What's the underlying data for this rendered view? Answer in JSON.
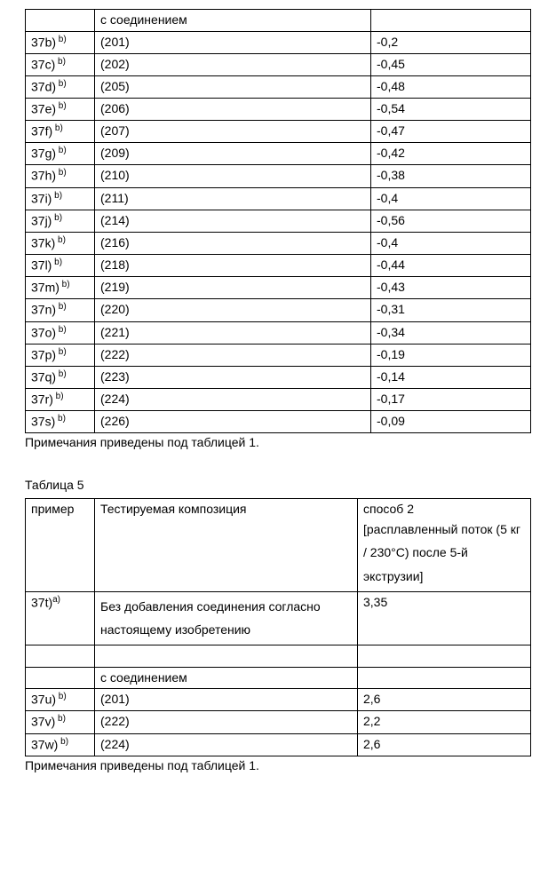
{
  "table1": {
    "header_middle": "с соединением",
    "rows": [
      {
        "id_base": "37b)",
        "id_sup": "b)",
        "mid": "(201)",
        "val": "-0,2"
      },
      {
        "id_base": "37c)",
        "id_sup": "b)",
        "mid": "(202)",
        "val": "-0,45"
      },
      {
        "id_base": "37d)",
        "id_sup": "b)",
        "mid": "(205)",
        "val": "-0,48"
      },
      {
        "id_base": "37e)",
        "id_sup": "b)",
        "mid": "(206)",
        "val": "-0,54"
      },
      {
        "id_base": "37f)",
        "id_sup": "b)",
        "mid": "(207)",
        "val": "-0,47"
      },
      {
        "id_base": "37g)",
        "id_sup": "b)",
        "mid": "(209)",
        "val": "-0,42"
      },
      {
        "id_base": "37h)",
        "id_sup": "b)",
        "mid": "(210)",
        "val": "-0,38"
      },
      {
        "id_base": "37i)",
        "id_sup": "b)",
        "mid": "(211)",
        "val": "-0,4"
      },
      {
        "id_base": "37j)",
        "id_sup": "b)",
        "mid": "(214)",
        "val": "-0,56"
      },
      {
        "id_base": "37k)",
        "id_sup": "b)",
        "mid": "(216)",
        "val": "-0,4"
      },
      {
        "id_base": "37l)",
        "id_sup": "b)",
        "mid": "(218)",
        "val": "-0,44"
      },
      {
        "id_base": "37m)",
        "id_sup": "b)",
        "mid": "(219)",
        "val": "-0,43"
      },
      {
        "id_base": "37n)",
        "id_sup": "b)",
        "mid": "(220)",
        "val": "-0,31"
      },
      {
        "id_base": "37o)",
        "id_sup": "b)",
        "mid": "(221)",
        "val": "-0,34"
      },
      {
        "id_base": "37p)",
        "id_sup": "b)",
        "mid": "(222)",
        "val": "-0,19"
      },
      {
        "id_base": "37q)",
        "id_sup": "b)",
        "mid": "(223)",
        "val": "-0,14"
      },
      {
        "id_base": "37r)",
        "id_sup": "b)",
        "mid": "(224)",
        "val": "-0,17"
      },
      {
        "id_base": "37s)",
        "id_sup": "b)",
        "mid": "(226)",
        "val": "-0,09"
      }
    ],
    "footnote": "Примечания приведены под таблицей 1."
  },
  "table2": {
    "caption": "Таблица 5",
    "header": {
      "c1": "пример",
      "c2": "Тестируемая композиция",
      "c3a": "способ 2",
      "c3b": "[расплавленный поток (5 кг / 230°С) после 5-й экструзии]"
    },
    "row_first": {
      "id_base": "37t)",
      "id_sup": "a)",
      "mid": "Без добавления соединения согласно настоящему изобретению",
      "val": "3,35"
    },
    "subheader_middle": "с соединением",
    "rows": [
      {
        "id_base": "37u)",
        "id_sup": "b)",
        "mid": "(201)",
        "val": "2,6"
      },
      {
        "id_base": "37v)",
        "id_sup": "b)",
        "mid": "(222)",
        "val": "2,2"
      },
      {
        "id_base": "37w)",
        "id_sup": "b)",
        "mid": "(224)",
        "val": "2,6"
      }
    ],
    "footnote": "Примечания приведены под таблицей 1."
  }
}
